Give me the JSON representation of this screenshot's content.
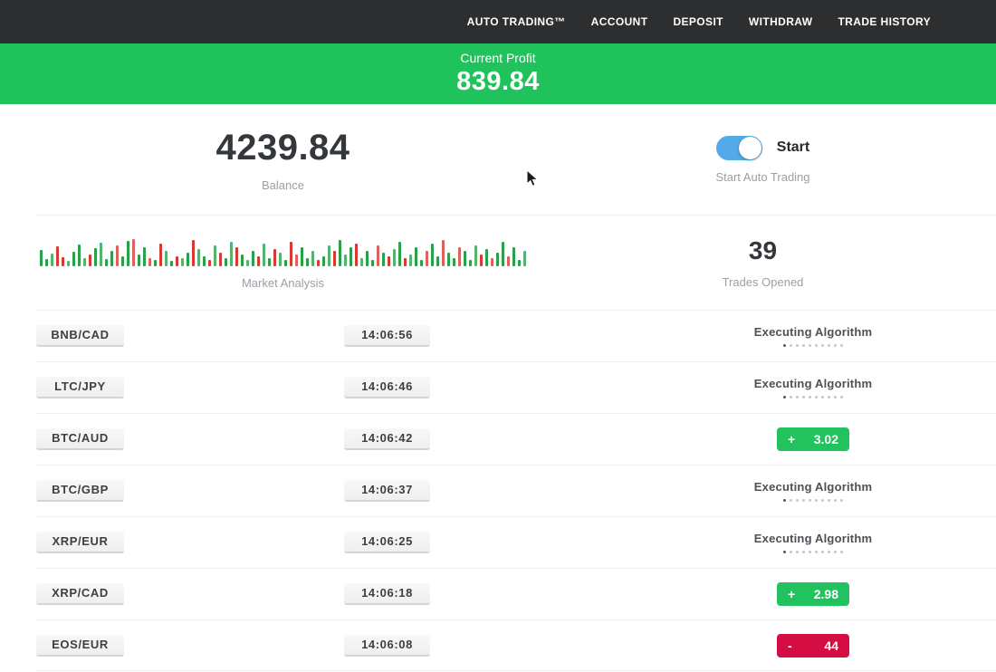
{
  "nav": {
    "items": [
      "AUTO TRADING™",
      "ACCOUNT",
      "DEPOSIT",
      "WITHDRAW",
      "TRADE HISTORY"
    ]
  },
  "profit_banner": {
    "label": "Current Profit",
    "value": "839.84"
  },
  "stats": {
    "balance": {
      "value": "4239.84",
      "label": "Balance"
    },
    "auto_trading": {
      "toggle_label": "Start",
      "label": "Start Auto Trading",
      "state": "on"
    },
    "market_analysis": {
      "label": "Market Analysis"
    },
    "trades_opened": {
      "value": "39",
      "label": "Trades Opened"
    }
  },
  "loader": {
    "dots_count": 10
  },
  "trades": [
    {
      "pair": "BNB/CAD",
      "time": "14:06:56",
      "status": "executing",
      "status_label": "Executing Algorithm"
    },
    {
      "pair": "LTC/JPY",
      "time": "14:06:46",
      "status": "executing",
      "status_label": "Executing Algorithm"
    },
    {
      "pair": "BTC/AUD",
      "time": "14:06:42",
      "status": "win",
      "sign": "+",
      "amount": "3.02"
    },
    {
      "pair": "BTC/GBP",
      "time": "14:06:37",
      "status": "executing",
      "status_label": "Executing Algorithm"
    },
    {
      "pair": "XRP/EUR",
      "time": "14:06:25",
      "status": "executing",
      "status_label": "Executing Algorithm"
    },
    {
      "pair": "XRP/CAD",
      "time": "14:06:18",
      "status": "win",
      "sign": "+",
      "amount": "2.98"
    },
    {
      "pair": "EOS/EUR",
      "time": "14:06:08",
      "status": "loss",
      "sign": "-",
      "amount": "44"
    }
  ],
  "chart_data": {
    "type": "bar",
    "title": "Market Analysis",
    "bars": [
      [
        18,
        "g"
      ],
      [
        8,
        "g"
      ],
      [
        14,
        "g"
      ],
      [
        22,
        "r"
      ],
      [
        10,
        "r"
      ],
      [
        6,
        "g"
      ],
      [
        16,
        "g"
      ],
      [
        24,
        "g"
      ],
      [
        9,
        "g"
      ],
      [
        13,
        "r"
      ],
      [
        20,
        "g"
      ],
      [
        26,
        "g"
      ],
      [
        8,
        "g"
      ],
      [
        17,
        "g"
      ],
      [
        23,
        "r"
      ],
      [
        11,
        "g"
      ],
      [
        28,
        "g"
      ],
      [
        30,
        "r"
      ],
      [
        13,
        "g"
      ],
      [
        21,
        "g"
      ],
      [
        9,
        "r"
      ],
      [
        7,
        "g"
      ],
      [
        25,
        "r"
      ],
      [
        17,
        "g"
      ],
      [
        6,
        "g"
      ],
      [
        11,
        "r"
      ],
      [
        9,
        "g"
      ],
      [
        15,
        "g"
      ],
      [
        29,
        "r"
      ],
      [
        19,
        "g"
      ],
      [
        11,
        "g"
      ],
      [
        7,
        "r"
      ],
      [
        23,
        "g"
      ],
      [
        15,
        "r"
      ],
      [
        9,
        "g"
      ],
      [
        27,
        "g"
      ],
      [
        21,
        "r"
      ],
      [
        13,
        "g"
      ],
      [
        7,
        "g"
      ],
      [
        17,
        "g"
      ],
      [
        11,
        "r"
      ],
      [
        25,
        "g"
      ],
      [
        9,
        "g"
      ],
      [
        19,
        "r"
      ],
      [
        15,
        "g"
      ],
      [
        7,
        "g"
      ],
      [
        27,
        "r"
      ],
      [
        13,
        "r"
      ],
      [
        21,
        "g"
      ],
      [
        9,
        "g"
      ],
      [
        17,
        "g"
      ],
      [
        7,
        "r"
      ],
      [
        11,
        "g"
      ],
      [
        23,
        "g"
      ],
      [
        17,
        "r"
      ],
      [
        29,
        "g"
      ],
      [
        13,
        "g"
      ],
      [
        21,
        "g"
      ],
      [
        25,
        "r"
      ],
      [
        9,
        "g"
      ],
      [
        17,
        "g"
      ],
      [
        7,
        "g"
      ],
      [
        23,
        "r"
      ],
      [
        15,
        "g"
      ],
      [
        11,
        "r"
      ],
      [
        19,
        "g"
      ],
      [
        27,
        "g"
      ],
      [
        9,
        "r"
      ],
      [
        13,
        "g"
      ],
      [
        21,
        "g"
      ],
      [
        7,
        "g"
      ],
      [
        17,
        "r"
      ],
      [
        25,
        "g"
      ],
      [
        11,
        "g"
      ],
      [
        29,
        "r"
      ],
      [
        15,
        "g"
      ],
      [
        9,
        "g"
      ],
      [
        21,
        "r"
      ],
      [
        17,
        "g"
      ],
      [
        7,
        "g"
      ],
      [
        23,
        "g"
      ],
      [
        13,
        "r"
      ],
      [
        19,
        "g"
      ],
      [
        9,
        "r"
      ],
      [
        15,
        "g"
      ],
      [
        27,
        "g"
      ],
      [
        11,
        "r"
      ],
      [
        21,
        "g"
      ],
      [
        7,
        "g"
      ],
      [
        17,
        "g"
      ]
    ]
  },
  "colors": {
    "nav_bg": "#2d2e30",
    "accent_green": "#20c25c",
    "badge_green": "#22c35e",
    "badge_red": "#d40e42",
    "toggle_blue": "#52abe8",
    "candle_green": "#2aa04a",
    "candle_red": "#d63a33"
  }
}
